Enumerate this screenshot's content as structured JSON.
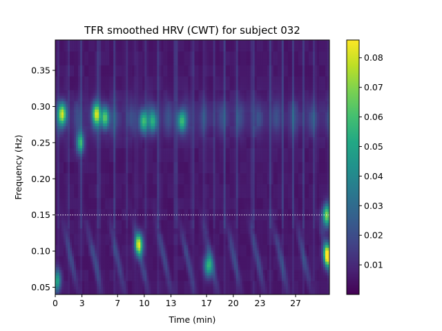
{
  "chart_data": {
    "type": "heatmap",
    "title": "TFR smoothed HRV (CWT) for subject 032",
    "xlabel": "Time (min)",
    "ylabel": "Frequency (Hz)",
    "xlim": [
      0,
      30.8
    ],
    "ylim": [
      0.04,
      0.392
    ],
    "x_ticks": [
      0,
      3,
      7,
      10,
      13,
      17,
      20,
      23,
      27
    ],
    "x_tick_labels": [
      "0",
      "3",
      "7",
      "10",
      "13",
      "17",
      "20",
      "23",
      "27"
    ],
    "y_ticks": [
      0.05,
      0.1,
      0.15,
      0.2,
      0.25,
      0.3,
      0.35
    ],
    "y_tick_labels": [
      "0.05",
      "0.10",
      "0.15",
      "0.20",
      "0.25",
      "0.30",
      "0.35"
    ],
    "colormap": "viridis",
    "colorbar": {
      "vmin": 0.0,
      "vmax": 0.086,
      "ticks": [
        0.01,
        0.02,
        0.03,
        0.04,
        0.05,
        0.06,
        0.07,
        0.08
      ],
      "tick_labels": [
        "0.01",
        "0.02",
        "0.03",
        "0.04",
        "0.05",
        "0.06",
        "0.07",
        "0.08"
      ]
    },
    "reference_line": {
      "y": 0.15,
      "style": "dotted",
      "color": "#ffffff"
    },
    "hotspots": [
      {
        "t": 0.8,
        "f": 0.29,
        "power": 0.065
      },
      {
        "t": 2.8,
        "f": 0.25,
        "power": 0.045
      },
      {
        "t": 4.6,
        "f": 0.29,
        "power": 0.06
      },
      {
        "t": 5.6,
        "f": 0.285,
        "power": 0.055
      },
      {
        "t": 9.4,
        "f": 0.11,
        "power": 0.07
      },
      {
        "t": 9.9,
        "f": 0.28,
        "power": 0.048
      },
      {
        "t": 11.0,
        "f": 0.28,
        "power": 0.04
      },
      {
        "t": 14.2,
        "f": 0.28,
        "power": 0.045
      },
      {
        "t": 17.2,
        "f": 0.08,
        "power": 0.05
      },
      {
        "t": 30.6,
        "f": 0.095,
        "power": 0.086
      },
      {
        "t": 30.5,
        "f": 0.15,
        "power": 0.065
      },
      {
        "t": 0.2,
        "f": 0.06,
        "power": 0.045
      }
    ]
  }
}
